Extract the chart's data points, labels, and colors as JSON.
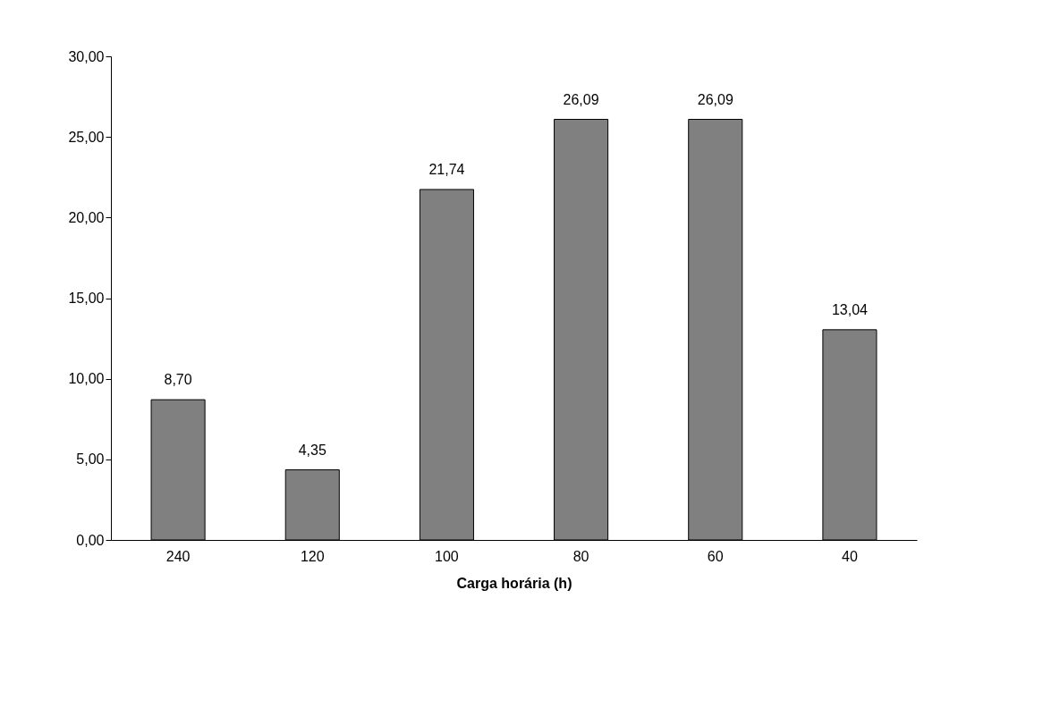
{
  "chart_data": {
    "type": "bar",
    "xlabel": "Carga horária (h)",
    "categories": [
      "240",
      "120",
      "100",
      "80",
      "60",
      "40"
    ],
    "values": [
      8.7,
      4.35,
      21.74,
      26.09,
      26.09,
      13.04
    ],
    "value_labels": [
      "8,70",
      "4,35",
      "21,74",
      "26,09",
      "26,09",
      "13,04"
    ],
    "color": "#808080",
    "ylim": [
      0,
      30
    ],
    "yticks": [
      {
        "value": 0,
        "label": "0,00"
      },
      {
        "value": 5,
        "label": "5,00"
      },
      {
        "value": 10,
        "label": "10,00"
      },
      {
        "value": 15,
        "label": "15,00"
      },
      {
        "value": 20,
        "label": "20,00"
      },
      {
        "value": 25,
        "label": "25,00"
      },
      {
        "value": 30,
        "label": "30,00"
      }
    ],
    "grid": false
  }
}
